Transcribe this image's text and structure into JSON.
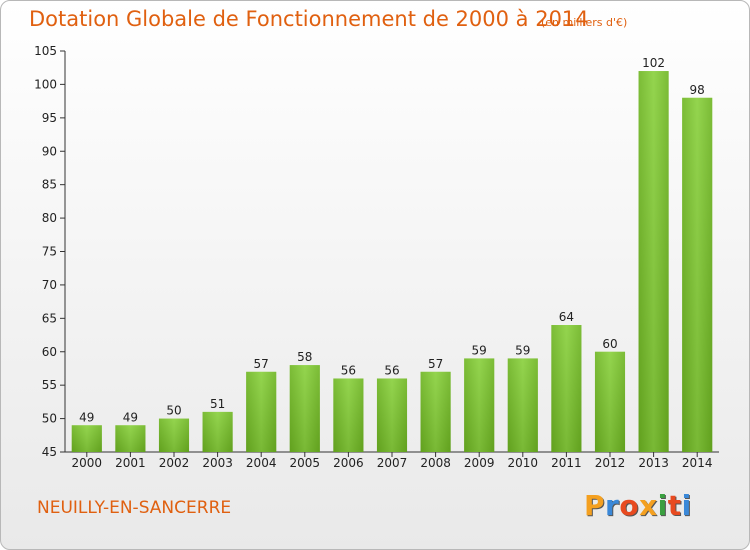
{
  "title": "Dotation Globale de Fonctionnement de 2000 à 2014",
  "subtitle": "(en milliers d'€)",
  "commune": "NEUILLY-EN-SANCERRE",
  "logo": {
    "letters": [
      "P",
      "r",
      "o",
      "x",
      "i",
      "t",
      "i"
    ],
    "colors": [
      "#f4a020",
      "#3a88d8",
      "#e84a20",
      "#f4a020",
      "#3aa040",
      "#e84a20",
      "#3a88d8"
    ]
  },
  "chart_data": {
    "type": "bar",
    "categories": [
      "2000",
      "2001",
      "2002",
      "2003",
      "2004",
      "2005",
      "2006",
      "2007",
      "2008",
      "2009",
      "2010",
      "2011",
      "2012",
      "2013",
      "2014"
    ],
    "values": [
      49,
      49,
      50,
      51,
      57,
      58,
      56,
      56,
      57,
      59,
      59,
      64,
      60,
      102,
      98
    ],
    "ylim": [
      45,
      105
    ],
    "yticks": [
      45,
      50,
      55,
      60,
      65,
      70,
      75,
      80,
      85,
      90,
      95,
      100,
      105
    ],
    "grid": false,
    "bar_color": "#7fc43a",
    "title": "Dotation Globale de Fonctionnement de 2000 à 2014",
    "subtitle": "(en milliers d'€)",
    "xlabel": "",
    "ylabel": ""
  }
}
